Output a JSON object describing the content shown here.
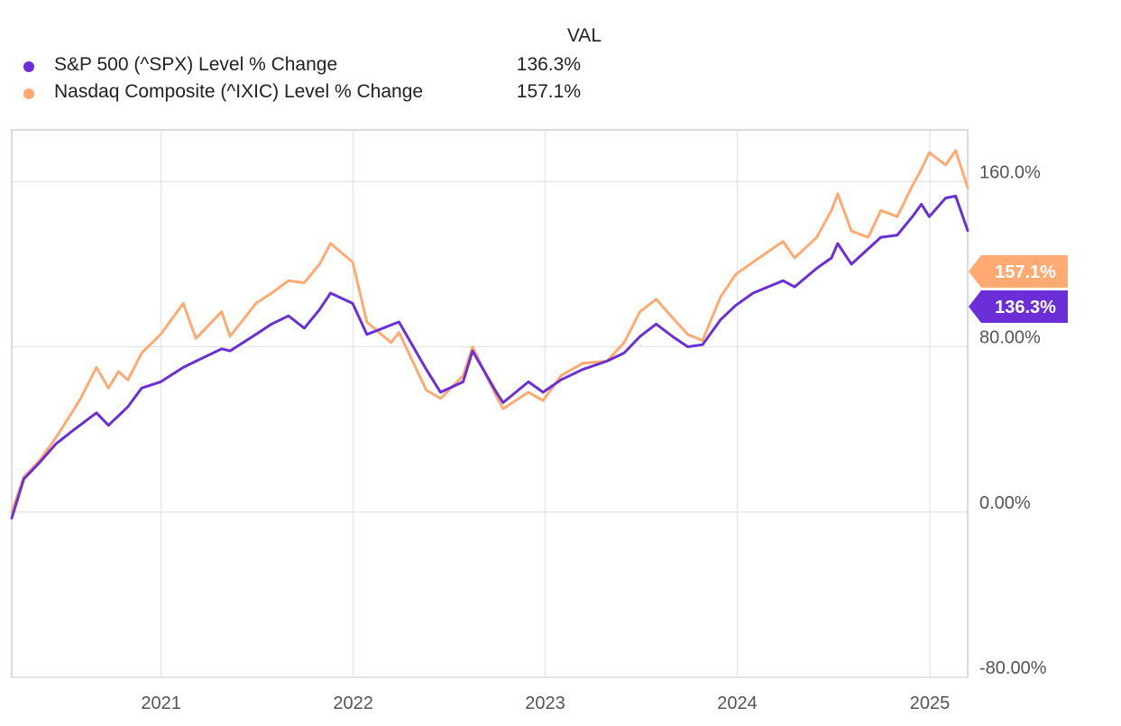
{
  "legend": {
    "column_header": "VAL",
    "items": [
      {
        "label": "S&P 500 (^SPX) Level % Change",
        "value": "136.3%",
        "color": "#6a2fd6"
      },
      {
        "label": "Nasdaq Composite (^IXIC) Level % Change",
        "value": "157.1%",
        "color": "#ffaa72"
      }
    ]
  },
  "chart_data": {
    "type": "line",
    "title": "",
    "xlabel": "",
    "ylabel": "",
    "x_ticks": [
      "2021",
      "2022",
      "2023",
      "2024",
      "2025"
    ],
    "y_ticks": [
      "160.0%",
      "80.00%",
      "0.00%",
      "-80.00%"
    ],
    "ylim": [
      -80,
      185
    ],
    "xlim": [
      "2020-03-23",
      "2025-03-14"
    ],
    "grid": true,
    "legend_position": "top-left",
    "end_labels": [
      "157.1%",
      "136.3%"
    ],
    "series": [
      {
        "name": "Nasdaq Composite (^IXIC) Level % Change",
        "color": "#ffaa72",
        "x": [
          "2020-03-23",
          "2020-04-15",
          "2020-05-15",
          "2020-06-15",
          "2020-07-15",
          "2020-08-01",
          "2020-08-31",
          "2020-09-23",
          "2020-10-12",
          "2020-10-30",
          "2020-11-25",
          "2020-12-31",
          "2021-02-12",
          "2021-03-08",
          "2021-04-26",
          "2021-05-12",
          "2021-06-30",
          "2021-07-30",
          "2021-08-31",
          "2021-09-30",
          "2021-10-29",
          "2021-11-19",
          "2021-12-31",
          "2022-01-27",
          "2022-03-14",
          "2022-03-29",
          "2022-05-20",
          "2022-06-16",
          "2022-07-29",
          "2022-08-16",
          "2022-09-30",
          "2022-10-13",
          "2022-11-30",
          "2022-12-28",
          "2023-01-31",
          "2023-03-13",
          "2023-04-28",
          "2023-05-31",
          "2023-06-30",
          "2023-07-31",
          "2023-08-31",
          "2023-09-29",
          "2023-10-27",
          "2023-11-30",
          "2023-12-29",
          "2024-01-31",
          "2024-03-28",
          "2024-04-19",
          "2024-05-31",
          "2024-06-28",
          "2024-07-10",
          "2024-08-05",
          "2024-09-06",
          "2024-09-30",
          "2024-10-31",
          "2024-11-29",
          "2024-12-16",
          "2024-12-31",
          "2025-01-31",
          "2025-02-19",
          "2025-03-14"
        ],
        "y": [
          0,
          17,
          25,
          36,
          48,
          55,
          70,
          60,
          68,
          64,
          77,
          86,
          101,
          84,
          97,
          85,
          101,
          106,
          112,
          111,
          120,
          130,
          121,
          92,
          82,
          87,
          59,
          55,
          66,
          80,
          56,
          50,
          58,
          54,
          66,
          72,
          73,
          82,
          97,
          103,
          94,
          86,
          83,
          104,
          115,
          121,
          131,
          123,
          133,
          146,
          154,
          136,
          133,
          146,
          143,
          158,
          166,
          174,
          168,
          175,
          157.1
        ]
      },
      {
        "name": "S&P 500 (^SPX) Level % Change",
        "color": "#6a2fd6",
        "x": [
          "2020-03-23",
          "2020-04-15",
          "2020-05-15",
          "2020-06-15",
          "2020-07-15",
          "2020-08-31",
          "2020-09-23",
          "2020-10-30",
          "2020-11-25",
          "2020-12-31",
          "2021-02-12",
          "2021-03-08",
          "2021-04-26",
          "2021-05-12",
          "2021-06-30",
          "2021-07-30",
          "2021-08-31",
          "2021-09-30",
          "2021-10-29",
          "2021-11-19",
          "2021-12-31",
          "2022-01-27",
          "2022-03-29",
          "2022-05-20",
          "2022-06-16",
          "2022-07-29",
          "2022-08-16",
          "2022-09-30",
          "2022-10-13",
          "2022-11-30",
          "2022-12-28",
          "2023-01-31",
          "2023-03-13",
          "2023-04-28",
          "2023-05-31",
          "2023-06-30",
          "2023-07-31",
          "2023-08-31",
          "2023-09-29",
          "2023-10-27",
          "2023-11-30",
          "2023-12-29",
          "2024-01-31",
          "2024-03-28",
          "2024-04-19",
          "2024-05-31",
          "2024-06-28",
          "2024-07-10",
          "2024-08-05",
          "2024-09-30",
          "2024-10-31",
          "2024-11-29",
          "2024-12-16",
          "2024-12-31",
          "2025-01-31",
          "2025-02-19",
          "2025-03-14"
        ],
        "y": [
          -3,
          16,
          24,
          33,
          39,
          48,
          42,
          51,
          60,
          63,
          70,
          73,
          79,
          78,
          86,
          91,
          95,
          89,
          98,
          106,
          101,
          86,
          92,
          69,
          58,
          63,
          78,
          58,
          53,
          63,
          58,
          64,
          69,
          73,
          77,
          85,
          91,
          85,
          80,
          81,
          93,
          100,
          106,
          112,
          109,
          118,
          123,
          130,
          120,
          133,
          134,
          143,
          149,
          143,
          152,
          153,
          136.3
        ]
      }
    ]
  }
}
